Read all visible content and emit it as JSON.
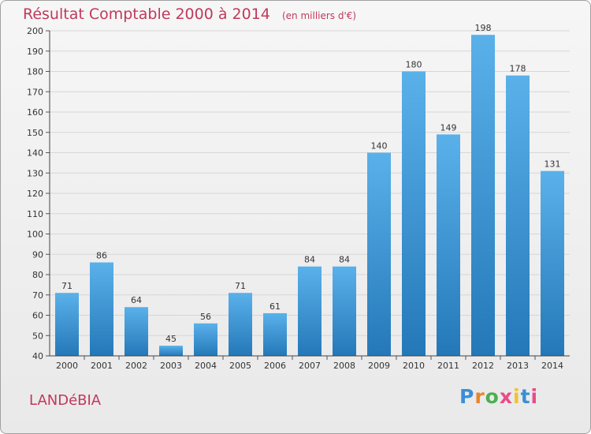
{
  "title": "Résultat Comptable 2000 à 2014",
  "unit": "(en milliers d'€)",
  "town": "LANDéBIA",
  "logo": {
    "letters": [
      "P",
      "r",
      "o",
      "x",
      "i",
      "t",
      "i"
    ],
    "colors": [
      "#3a8fd6",
      "#e8842a",
      "#4caf50",
      "#e84b8a",
      "#f2c12e",
      "#3a8fd6",
      "#e84b8a"
    ]
  },
  "colors": {
    "bar": "#4ea6e3",
    "bar_dark": "#2478b8",
    "accent": "#c0395a"
  },
  "chart_data": {
    "type": "bar",
    "title": "Résultat Comptable 2000 à 2014",
    "categories": [
      "2000",
      "2001",
      "2002",
      "2003",
      "2004",
      "2005",
      "2006",
      "2007",
      "2008",
      "2009",
      "2010",
      "2011",
      "2012",
      "2013",
      "2014"
    ],
    "values": [
      71,
      86,
      64,
      45,
      56,
      71,
      61,
      84,
      84,
      140,
      180,
      149,
      198,
      178,
      131
    ],
    "ylim": [
      40,
      200
    ],
    "yticks": [
      40,
      50,
      60,
      70,
      80,
      90,
      100,
      110,
      120,
      130,
      140,
      150,
      160,
      170,
      180,
      190,
      200
    ],
    "grid": true
  }
}
